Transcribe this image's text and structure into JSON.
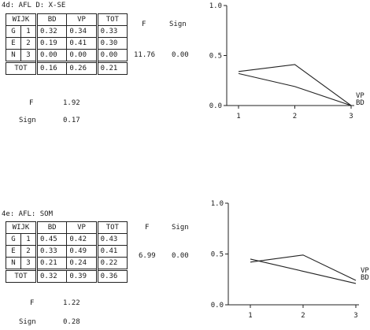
{
  "panels": [
    {
      "title": "4d: AFL D: X-SE",
      "headers": [
        "WIJK",
        "BD",
        "VP",
        "TOT"
      ],
      "row_letters": [
        "G",
        "E",
        "N"
      ],
      "rows": [
        {
          "n": "1",
          "bd": "0.32",
          "vp": "0.34",
          "tot": "0.33"
        },
        {
          "n": "2",
          "bd": "0.19",
          "vp": "0.41",
          "tot": "0.30"
        },
        {
          "n": "3",
          "bd": "0.00",
          "vp": "0.00",
          "tot": "0.00"
        }
      ],
      "total": {
        "label": "TOT",
        "bd": "0.16",
        "vp": "0.26",
        "tot": "0.21"
      },
      "f_header": "F",
      "sign_header": "Sign",
      "f_value": "11.76",
      "sign_value": "0.00",
      "f2_label": "F",
      "f2_value": "1.92",
      "sign2_label": "Sign",
      "sign2_value": "0.17"
    },
    {
      "title": "4e: AFL: SOM",
      "headers": [
        "WIJK",
        "BD",
        "VP",
        "TOT"
      ],
      "row_letters": [
        "G",
        "E",
        "N"
      ],
      "rows": [
        {
          "n": "1",
          "bd": "0.45",
          "vp": "0.42",
          "tot": "0.43"
        },
        {
          "n": "2",
          "bd": "0.33",
          "vp": "0.49",
          "tot": "0.41"
        },
        {
          "n": "3",
          "bd": "0.21",
          "vp": "0.24",
          "tot": "0.22"
        }
      ],
      "total": {
        "label": "TOT",
        "bd": "0.32",
        "vp": "0.39",
        "tot": "0.36"
      },
      "f_header": "F",
      "sign_header": "Sign",
      "f_value": "6.99",
      "sign_value": "0.00",
      "f2_label": "F",
      "f2_value": "1.22",
      "sign2_label": "Sign",
      "sign2_value": "0.28"
    }
  ],
  "chart_data": [
    {
      "type": "line",
      "x": [
        1,
        2,
        3
      ],
      "xticks": [
        "1",
        "2",
        "3"
      ],
      "ylim": [
        0,
        1
      ],
      "yticks": [
        "0.0",
        "0.5",
        "1.0"
      ],
      "series": [
        {
          "name": "VP",
          "values": [
            0.34,
            0.41,
            0.0
          ]
        },
        {
          "name": "BD",
          "values": [
            0.32,
            0.19,
            0.0
          ]
        }
      ],
      "grid": false
    },
    {
      "type": "line",
      "x": [
        1,
        2,
        3
      ],
      "xticks": [
        "1",
        "2",
        "3"
      ],
      "ylim": [
        0,
        1
      ],
      "yticks": [
        "0.0",
        "0.5",
        "1.0"
      ],
      "series": [
        {
          "name": "VP",
          "values": [
            0.42,
            0.49,
            0.24
          ]
        },
        {
          "name": "BD",
          "values": [
            0.45,
            0.33,
            0.21
          ]
        }
      ],
      "grid": false
    }
  ]
}
